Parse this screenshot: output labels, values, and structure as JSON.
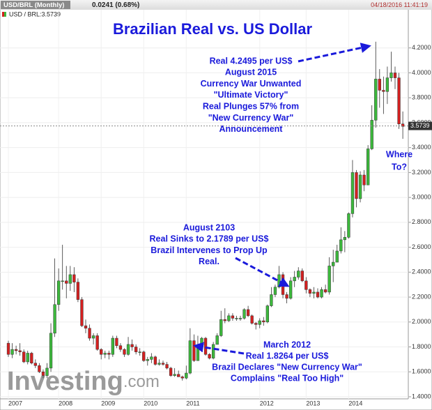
{
  "header": {
    "symbol": "USD/BRL (Monthly)",
    "change": "0.0241 (0.68%)",
    "timestamp": "04/18/2016 11:41:19",
    "quote": "USD / BRL:3.5739"
  },
  "logo": {
    "name": "Investing",
    "suffix": ".com"
  },
  "chart_data": {
    "type": "candlestick",
    "title": "Brazilian Real vs. US Dollar",
    "categories": [
      "2007",
      null,
      null,
      null,
      null,
      null,
      null,
      null,
      null,
      null,
      null,
      null,
      null,
      "2008",
      null,
      null,
      null,
      null,
      null,
      null,
      null,
      null,
      null,
      null,
      "2009",
      null,
      null,
      null,
      null,
      null,
      null,
      null,
      null,
      null,
      null,
      "2010",
      null,
      null,
      null,
      null,
      null,
      null,
      null,
      null,
      null,
      null,
      "2011",
      null,
      null,
      null,
      null,
      null,
      null,
      null,
      null,
      null,
      null,
      null,
      null,
      null,
      null,
      null,
      null,
      null,
      null,
      "2012",
      null,
      null,
      null,
      null,
      null,
      null,
      null,
      null,
      null,
      null,
      null,
      "2013",
      null,
      null,
      null,
      null,
      null,
      null,
      null,
      null,
      null,
      null,
      "2014",
      null,
      null,
      null,
      null,
      null,
      null,
      null,
      null,
      null,
      null,
      null,
      null,
      null,
      null
    ],
    "open": [
      1.83,
      1.74,
      1.78,
      1.77,
      1.76,
      1.68,
      1.75,
      1.67,
      1.65,
      1.6,
      1.57,
      1.63,
      1.91,
      2.14,
      2.33,
      2.33,
      2.31,
      2.38,
      2.32,
      2.18,
      1.97,
      1.95,
      1.87,
      1.89,
      1.78,
      1.74,
      1.75,
      1.74,
      1.87,
      1.81,
      1.78,
      1.74,
      1.82,
      1.8,
      1.76,
      1.76,
      1.69,
      1.7,
      1.72,
      1.66,
      1.67,
      1.66,
      1.63,
      1.57,
      1.58,
      1.56,
      1.55,
      1.59,
      1.85,
      1.69,
      1.81,
      1.87,
      1.74,
      1.71,
      1.82,
      1.89,
      2.02,
      2.01,
      2.05,
      2.03,
      2.03,
      2.03,
      2.1,
      2.05,
      1.99,
      1.98,
      2.01,
      2.0,
      2.13,
      2.22,
      2.28,
      2.38,
      2.22,
      2.19,
      2.33,
      2.36,
      2.41,
      2.33,
      2.26,
      2.23,
      2.24,
      2.2,
      2.26,
      2.24,
      2.45,
      2.48,
      2.57,
      2.66,
      2.68,
      2.87,
      3.2,
      2.99,
      3.18,
      3.1,
      3.39,
      3.62,
      3.95,
      3.86,
      3.85,
      3.96,
      4.0,
      3.96,
      3.59
    ],
    "high": [
      1.85,
      1.83,
      1.81,
      1.83,
      1.78,
      1.77,
      1.76,
      1.7,
      1.67,
      1.62,
      1.67,
      1.99,
      2.51,
      2.43,
      2.62,
      2.45,
      2.45,
      2.44,
      2.35,
      2.2,
      2.02,
      1.98,
      1.91,
      1.91,
      1.79,
      1.77,
      1.77,
      1.89,
      1.89,
      1.83,
      1.79,
      1.88,
      1.86,
      1.82,
      1.79,
      1.77,
      1.72,
      1.75,
      1.73,
      1.7,
      1.69,
      1.68,
      1.64,
      1.63,
      1.61,
      1.57,
      1.65,
      1.95,
      1.9,
      1.89,
      1.88,
      1.88,
      1.75,
      1.84,
      1.91,
      2.09,
      2.11,
      2.07,
      2.07,
      2.05,
      2.05,
      2.11,
      2.13,
      2.06,
      2.0,
      2.03,
      2.04,
      2.14,
      2.28,
      2.3,
      2.45,
      2.4,
      2.24,
      2.36,
      2.41,
      2.44,
      2.43,
      2.36,
      2.27,
      2.28,
      2.27,
      2.28,
      2.3,
      2.52,
      2.58,
      2.62,
      2.76,
      2.73,
      2.88,
      3.3,
      3.22,
      3.21,
      3.22,
      3.42,
      3.74,
      4.25,
      4.03,
      3.97,
      4.05,
      4.17,
      4.05,
      4.0,
      3.69
    ],
    "low": [
      1.72,
      1.71,
      1.74,
      1.73,
      1.67,
      1.66,
      1.66,
      1.63,
      1.59,
      1.55,
      1.55,
      1.6,
      1.88,
      2.09,
      2.26,
      2.19,
      2.25,
      2.24,
      2.16,
      1.96,
      1.91,
      1.85,
      1.82,
      1.77,
      1.7,
      1.71,
      1.7,
      1.72,
      1.79,
      1.76,
      1.72,
      1.73,
      1.77,
      1.74,
      1.73,
      1.68,
      1.65,
      1.67,
      1.65,
      1.65,
      1.65,
      1.62,
      1.56,
      1.56,
      1.56,
      1.53,
      1.54,
      1.58,
      1.68,
      1.69,
      1.76,
      1.73,
      1.7,
      1.7,
      1.82,
      1.88,
      1.99,
      2.0,
      2.01,
      2.01,
      2.01,
      2.02,
      2.04,
      1.98,
      1.94,
      1.95,
      1.97,
      1.99,
      2.12,
      2.2,
      2.27,
      2.19,
      2.15,
      2.18,
      2.28,
      2.34,
      2.32,
      2.23,
      2.2,
      2.19,
      2.19,
      2.19,
      2.23,
      2.22,
      2.32,
      2.48,
      2.55,
      2.56,
      2.67,
      2.84,
      2.92,
      2.96,
      3.05,
      3.1,
      3.38,
      3.56,
      3.72,
      3.67,
      3.75,
      3.93,
      3.87,
      3.55,
      3.47
    ],
    "close": [
      1.74,
      1.78,
      1.77,
      1.76,
      1.68,
      1.75,
      1.67,
      1.65,
      1.6,
      1.57,
      1.63,
      1.91,
      2.14,
      2.33,
      2.33,
      2.31,
      2.38,
      2.32,
      2.18,
      1.97,
      1.95,
      1.87,
      1.89,
      1.78,
      1.74,
      1.75,
      1.74,
      1.87,
      1.81,
      1.78,
      1.74,
      1.82,
      1.8,
      1.76,
      1.76,
      1.69,
      1.7,
      1.72,
      1.66,
      1.67,
      1.66,
      1.63,
      1.57,
      1.58,
      1.56,
      1.55,
      1.59,
      1.85,
      1.69,
      1.81,
      1.87,
      1.74,
      1.71,
      1.82,
      1.89,
      2.02,
      2.01,
      2.05,
      2.03,
      2.03,
      2.03,
      2.1,
      2.05,
      1.99,
      1.98,
      2.01,
      2.0,
      2.13,
      2.22,
      2.28,
      2.38,
      2.22,
      2.19,
      2.33,
      2.36,
      2.41,
      2.33,
      2.26,
      2.23,
      2.24,
      2.2,
      2.26,
      2.24,
      2.45,
      2.48,
      2.57,
      2.66,
      2.68,
      2.87,
      3.2,
      2.99,
      3.18,
      3.1,
      3.39,
      3.62,
      3.95,
      3.86,
      3.85,
      3.96,
      4.0,
      3.96,
      3.59,
      3.57
    ],
    "up_color": "#3cb93c",
    "down_color": "#d42020",
    "last_price": 3.5739,
    "ylim": [
      1.4,
      4.4
    ],
    "yticks": [
      {
        "value": 1.4,
        "label": "1.4000"
      },
      {
        "value": 1.6,
        "label": "1.6000"
      },
      {
        "value": 1.8,
        "label": "1.8000"
      },
      {
        "value": 2.0,
        "label": "2.0000"
      },
      {
        "value": 2.2,
        "label": "2.2000"
      },
      {
        "value": 2.4,
        "label": "2.4000"
      },
      {
        "value": 2.6,
        "label": "2.6000"
      },
      {
        "value": 2.8,
        "label": "2.8000"
      },
      {
        "value": 3.0,
        "label": "3.0000"
      },
      {
        "value": 3.2,
        "label": "3.2000"
      },
      {
        "value": 3.4,
        "label": "3.4000"
      },
      {
        "value": 3.6,
        "label": "3.6000"
      },
      {
        "value": 3.8,
        "label": "3.8000"
      },
      {
        "value": 4.0,
        "label": "4.0000"
      },
      {
        "value": 4.2,
        "label": "4.2000"
      }
    ],
    "grid": true,
    "annotations": [
      {
        "lines": [
          "Real 4.2495 per US$",
          "August 2015",
          "Currency War Unwanted",
          "\"Ultimate Victory\"",
          "Real Plunges 57% from",
          "\"New Currency War\"",
          "Announcement"
        ]
      },
      {
        "lines": [
          "Where",
          "To?"
        ]
      },
      {
        "lines": [
          "August 2103",
          "Real Sinks to 2.1789 per US$",
          "Brazil Intervenes to Prop Up",
          "Real."
        ]
      },
      {
        "lines": [
          "March 2012",
          "Real 1.8264 per US$",
          "Brazil Declares \"New Currency War\"",
          "Complains \"Real Too High\""
        ]
      }
    ]
  }
}
